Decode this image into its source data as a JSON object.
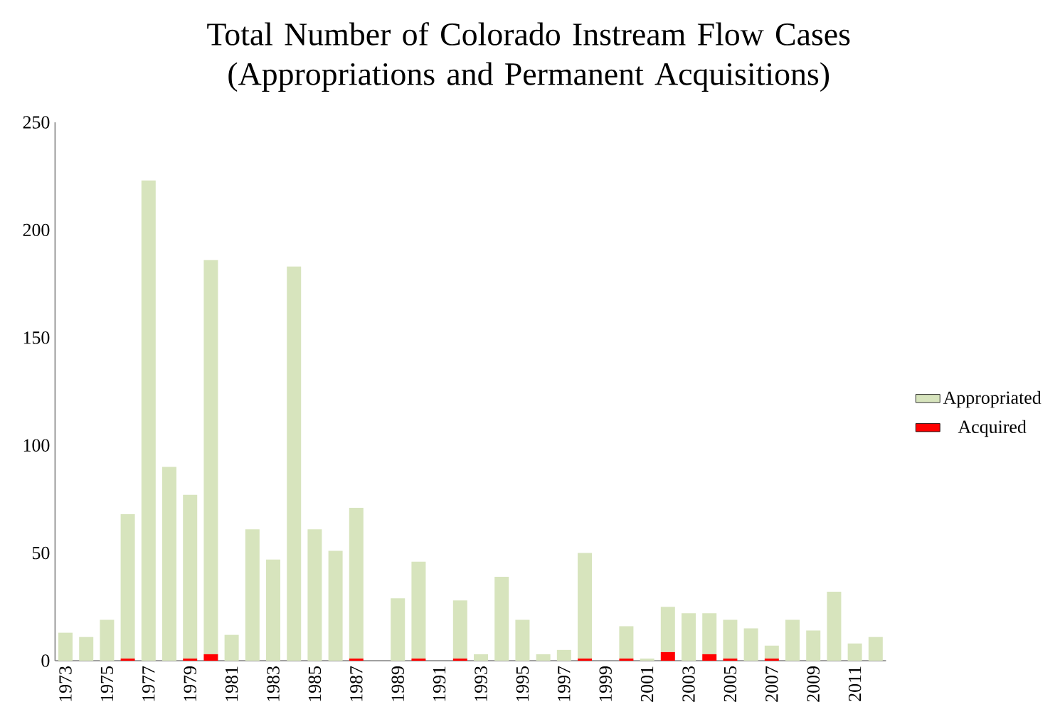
{
  "chart_data": {
    "type": "bar",
    "stacked": true,
    "title": "Total Number of Colorado Instream Flow Cases (Appropriations and Permanent Acquisitions)",
    "categories": [
      "1973",
      null,
      "1975",
      null,
      "1977",
      null,
      "1979",
      null,
      "1981",
      null,
      "1983",
      null,
      "1985",
      null,
      "1987",
      null,
      "1989",
      null,
      "1991",
      null,
      "1993",
      null,
      "1995",
      null,
      "1997",
      null,
      "1999",
      null,
      "2001",
      null,
      "2003",
      null,
      "2005",
      null,
      "2007",
      null,
      "2009",
      null,
      "2011",
      null
    ],
    "series": [
      {
        "name": "Acquired",
        "color": "#ff0000",
        "values": [
          0,
          0,
          0,
          1,
          0,
          0,
          1,
          3,
          0,
          0,
          0,
          0,
          0,
          0,
          1,
          0,
          0,
          1,
          0,
          1,
          0,
          0,
          0,
          0,
          0,
          1,
          0,
          1,
          0,
          4,
          0,
          3,
          1,
          0,
          1,
          0,
          0,
          0,
          0,
          0
        ]
      },
      {
        "name": "Appropriated",
        "color": "#d7e4bd",
        "values": [
          13,
          11,
          19,
          67,
          223,
          90,
          76,
          183,
          12,
          61,
          47,
          183,
          61,
          51,
          70,
          0,
          29,
          45,
          0,
          27,
          3,
          39,
          19,
          3,
          5,
          49,
          0,
          15,
          1,
          21,
          22,
          19,
          18,
          15,
          6,
          19,
          14,
          32,
          8,
          11
        ]
      }
    ],
    "ylim": [
      0,
      250
    ],
    "yticks": [
      0,
      50,
      100,
      150,
      200,
      250
    ],
    "legend": "right"
  }
}
